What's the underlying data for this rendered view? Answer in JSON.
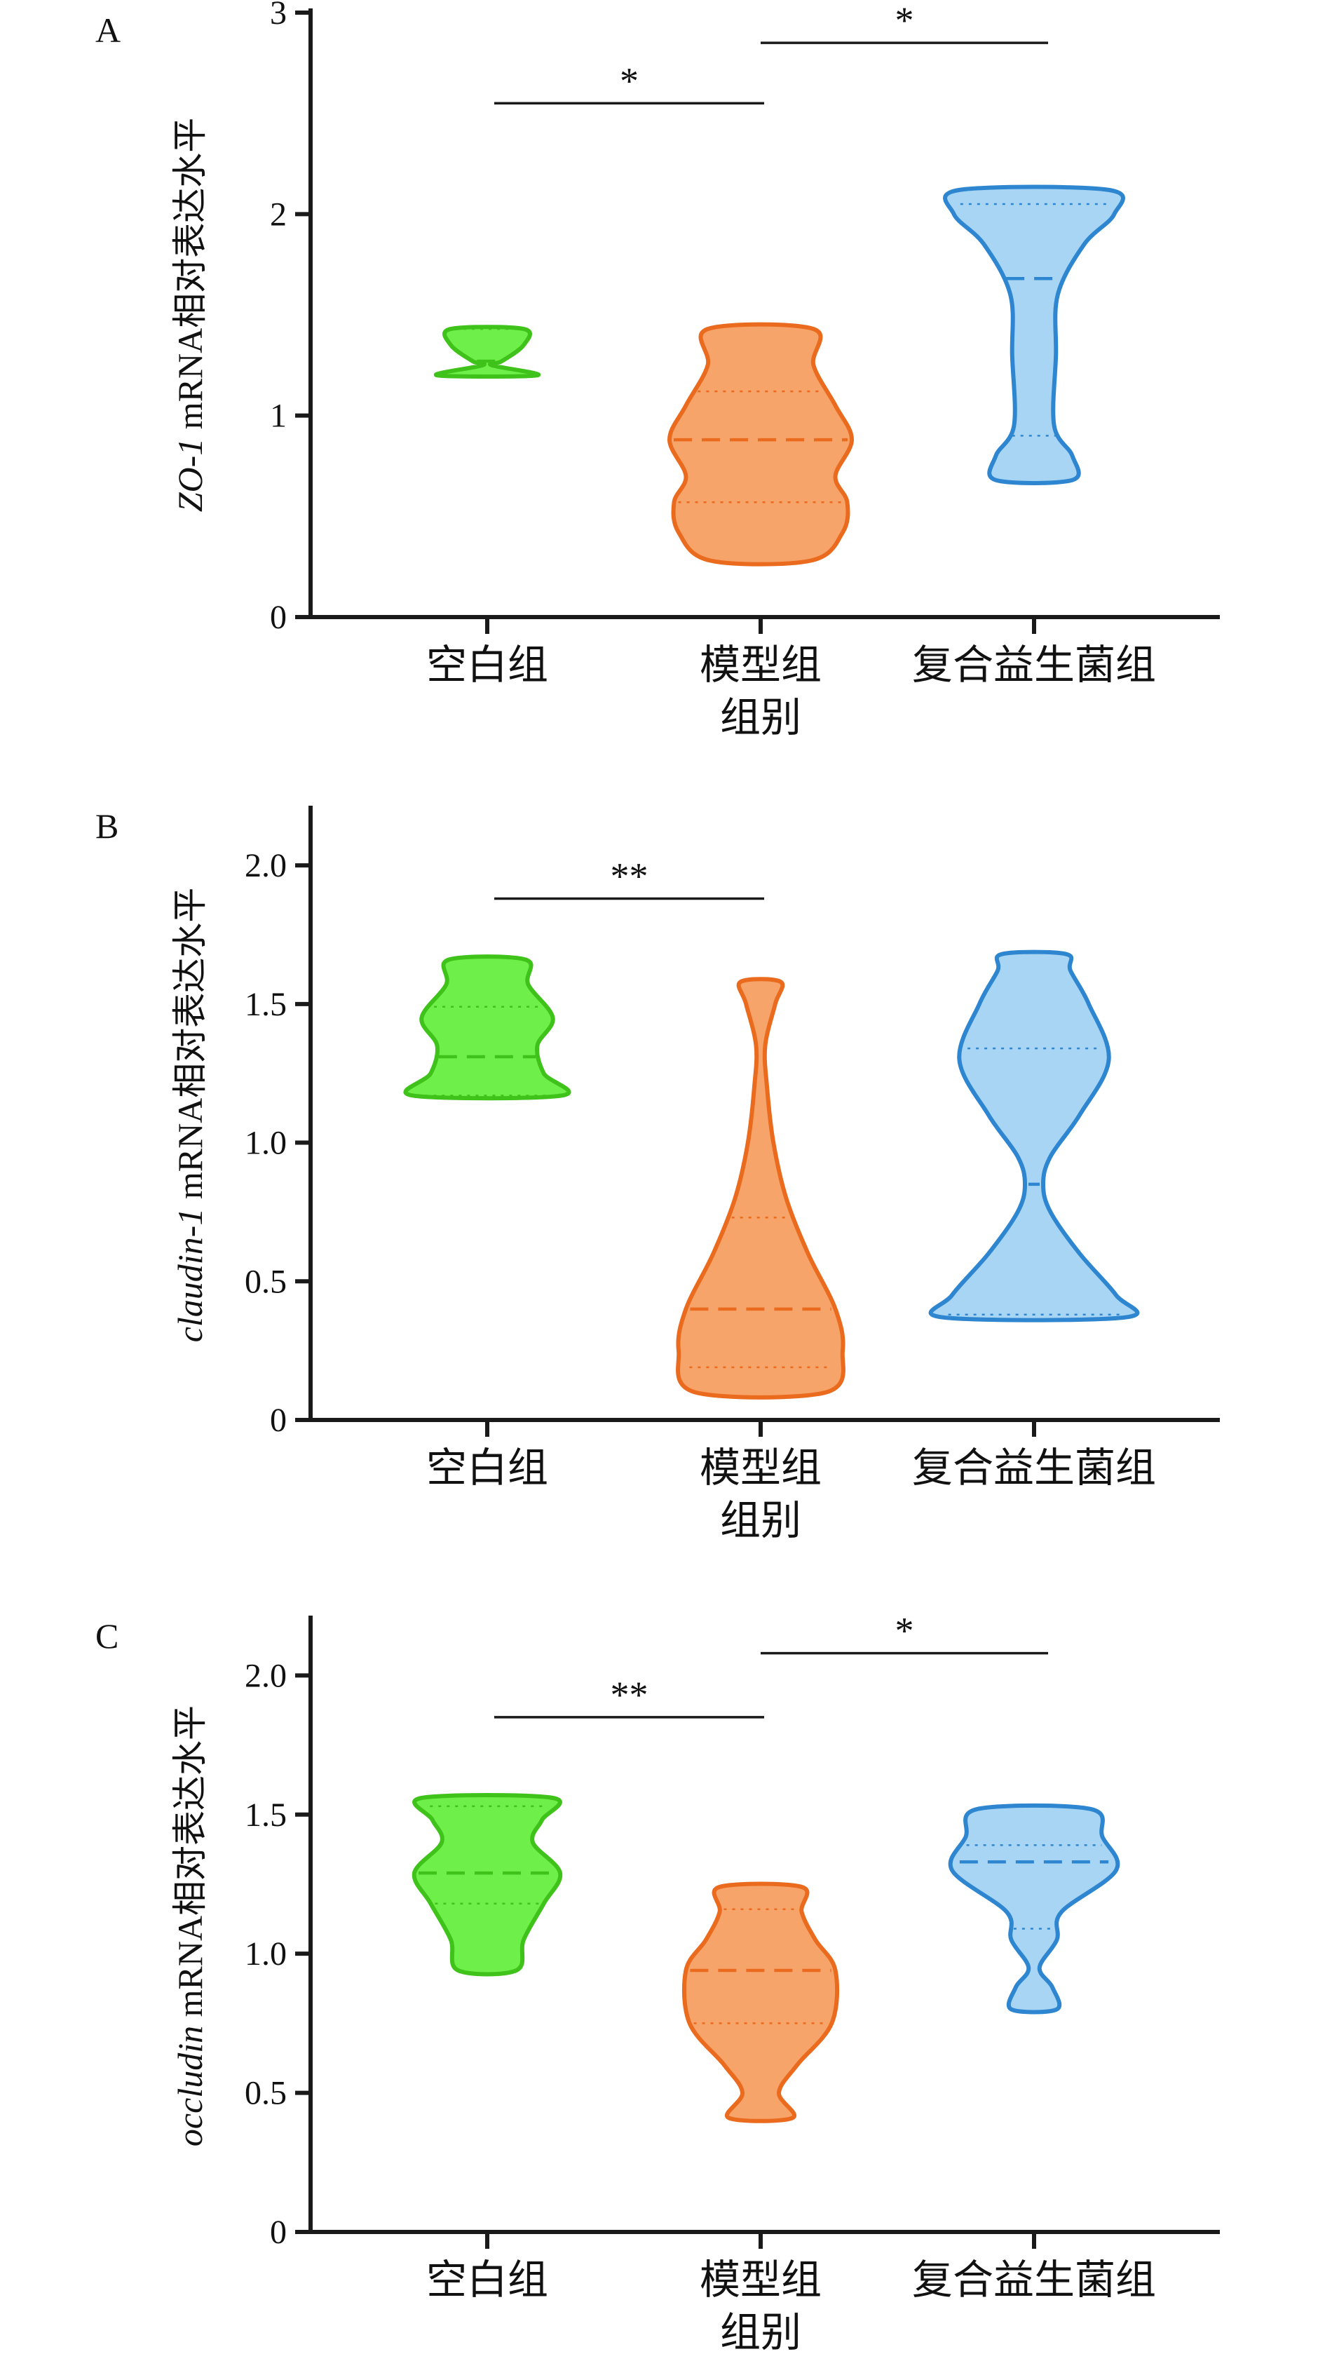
{
  "x_axis_title": "组别",
  "categories": [
    "空白组",
    "模型组",
    "复合益生菌组"
  ],
  "group_colors": {
    "空白组": {
      "fill": "#6fef4a",
      "stroke": "#3fc21a"
    },
    "模型组": {
      "fill": "#f7a46a",
      "stroke": "#ea6a1e"
    },
    "复合益生菌组": {
      "fill": "#a9d5f5",
      "stroke": "#2d86cf"
    }
  },
  "chart_data": [
    {
      "panel": "A",
      "type": "violin",
      "ylabel_gene": "ZO-1",
      "ylabel_rest": " mRNA相对表达水平",
      "xlabel": "组别",
      "categories": [
        "空白组",
        "模型组",
        "复合益生菌组"
      ],
      "ylim": [
        0,
        3
      ],
      "yticks": [
        0,
        1,
        2,
        3
      ],
      "yticklabels": [
        "0",
        "1",
        "2",
        "3"
      ],
      "grid": false,
      "series": [
        {
          "category": "空白组",
          "min": 1.2,
          "max": 1.43,
          "q1": 1.2,
          "median": 1.27,
          "q3": 1.43,
          "profile": [
            [
              1.2,
              0.55
            ],
            [
              1.25,
              0.05
            ],
            [
              1.27,
              0.16
            ],
            [
              1.35,
              0.4
            ],
            [
              1.43,
              0.4
            ]
          ]
        },
        {
          "category": "模型组",
          "min": 0.28,
          "max": 1.43,
          "q1": 0.57,
          "median": 0.88,
          "q3": 1.12,
          "profile": [
            [
              0.28,
              0.55
            ],
            [
              0.42,
              0.9
            ],
            [
              0.57,
              0.95
            ],
            [
              0.7,
              0.82
            ],
            [
              0.88,
              1.0
            ],
            [
              1.05,
              0.82
            ],
            [
              1.25,
              0.58
            ],
            [
              1.43,
              0.58
            ]
          ]
        },
        {
          "category": "复合益生菌组",
          "min": 0.68,
          "max": 2.12,
          "q1": 0.9,
          "median": 1.68,
          "q3": 2.05,
          "profile": [
            [
              0.68,
              0.42
            ],
            [
              0.8,
              0.42
            ],
            [
              0.95,
              0.22
            ],
            [
              1.3,
              0.24
            ],
            [
              1.6,
              0.26
            ],
            [
              1.85,
              0.55
            ],
            [
              2.0,
              0.88
            ],
            [
              2.12,
              0.82
            ]
          ]
        }
      ],
      "significance": [
        {
          "between": [
            "空白组",
            "模型组"
          ],
          "label": "*",
          "y": 2.55
        },
        {
          "between": [
            "模型组",
            "复合益生菌组"
          ],
          "label": "*",
          "y": 2.85
        }
      ]
    },
    {
      "panel": "B",
      "type": "violin",
      "ylabel_gene": "claudin-1",
      "ylabel_rest": " mRNA相对表达水平",
      "xlabel": "组别",
      "categories": [
        "空白组",
        "模型组",
        "复合益生菌组"
      ],
      "ylim": [
        0,
        2.2
      ],
      "yticks": [
        0,
        0.5,
        1.0,
        1.5,
        2.0
      ],
      "yticklabels": [
        "0",
        "0.5",
        "1.0",
        "1.5",
        "2.0"
      ],
      "grid": false,
      "series": [
        {
          "category": "空白组",
          "min": 1.17,
          "max": 1.66,
          "q1": 1.17,
          "median": 1.31,
          "q3": 1.49,
          "profile": [
            [
              1.17,
              0.82
            ],
            [
              1.25,
              0.62
            ],
            [
              1.35,
              0.55
            ],
            [
              1.45,
              0.72
            ],
            [
              1.57,
              0.45
            ],
            [
              1.66,
              0.42
            ]
          ]
        },
        {
          "category": "模型组",
          "min": 0.1,
          "max": 1.58,
          "q1": 0.19,
          "median": 0.4,
          "q3": 0.73,
          "profile": [
            [
              0.1,
              0.72
            ],
            [
              0.25,
              0.9
            ],
            [
              0.4,
              0.82
            ],
            [
              0.6,
              0.52
            ],
            [
              0.8,
              0.28
            ],
            [
              1.0,
              0.14
            ],
            [
              1.2,
              0.07
            ],
            [
              1.35,
              0.05
            ],
            [
              1.5,
              0.16
            ],
            [
              1.58,
              0.22
            ]
          ]
        },
        {
          "category": "复合益生菌组",
          "min": 0.37,
          "max": 1.68,
          "q1": 0.38,
          "median": 0.85,
          "q3": 1.34,
          "profile": [
            [
              0.37,
              1.0
            ],
            [
              0.45,
              0.9
            ],
            [
              0.6,
              0.5
            ],
            [
              0.75,
              0.18
            ],
            [
              0.85,
              0.1
            ],
            [
              0.95,
              0.18
            ],
            [
              1.1,
              0.5
            ],
            [
              1.3,
              0.82
            ],
            [
              1.5,
              0.6
            ],
            [
              1.62,
              0.4
            ],
            [
              1.68,
              0.35
            ]
          ]
        }
      ],
      "significance": [
        {
          "between": [
            "空白组",
            "模型组"
          ],
          "label": "**",
          "y": 1.88
        }
      ]
    },
    {
      "panel": "C",
      "type": "violin",
      "ylabel_gene": "occludin",
      "ylabel_rest": " mRNA相对表达水平",
      "xlabel": "组别",
      "categories": [
        "空白组",
        "模型组",
        "复合益生菌组"
      ],
      "ylim": [
        0,
        2.2
      ],
      "yticks": [
        0,
        0.5,
        1.0,
        1.5,
        2.0
      ],
      "yticklabels": [
        "0",
        "0.5",
        "1.0",
        "1.5",
        "2.0"
      ],
      "grid": false,
      "series": [
        {
          "category": "空白组",
          "min": 0.94,
          "max": 1.56,
          "q1": 1.18,
          "median": 1.29,
          "q3": 1.53,
          "profile": [
            [
              0.94,
              0.32
            ],
            [
              1.05,
              0.4
            ],
            [
              1.18,
              0.62
            ],
            [
              1.29,
              0.8
            ],
            [
              1.4,
              0.5
            ],
            [
              1.48,
              0.6
            ],
            [
              1.56,
              0.72
            ]
          ]
        },
        {
          "category": "模型组",
          "min": 0.41,
          "max": 1.24,
          "q1": 0.75,
          "median": 0.94,
          "q3": 1.16,
          "profile": [
            [
              0.41,
              0.35
            ],
            [
              0.5,
              0.2
            ],
            [
              0.6,
              0.4
            ],
            [
              0.75,
              0.78
            ],
            [
              0.94,
              0.82
            ],
            [
              1.05,
              0.6
            ],
            [
              1.15,
              0.45
            ],
            [
              1.24,
              0.45
            ]
          ]
        },
        {
          "category": "复合益生菌组",
          "min": 0.8,
          "max": 1.52,
          "q1": 1.09,
          "median": 1.33,
          "q3": 1.39,
          "profile": [
            [
              0.8,
              0.25
            ],
            [
              0.88,
              0.2
            ],
            [
              0.95,
              0.06
            ],
            [
              1.05,
              0.25
            ],
            [
              1.15,
              0.3
            ],
            [
              1.3,
              0.9
            ],
            [
              1.42,
              0.75
            ],
            [
              1.52,
              0.62
            ]
          ]
        }
      ],
      "significance": [
        {
          "between": [
            "空白组",
            "模型组"
          ],
          "label": "**",
          "y": 1.85
        },
        {
          "between": [
            "模型组",
            "复合益生菌组"
          ],
          "label": "*",
          "y": 2.08
        }
      ]
    }
  ]
}
